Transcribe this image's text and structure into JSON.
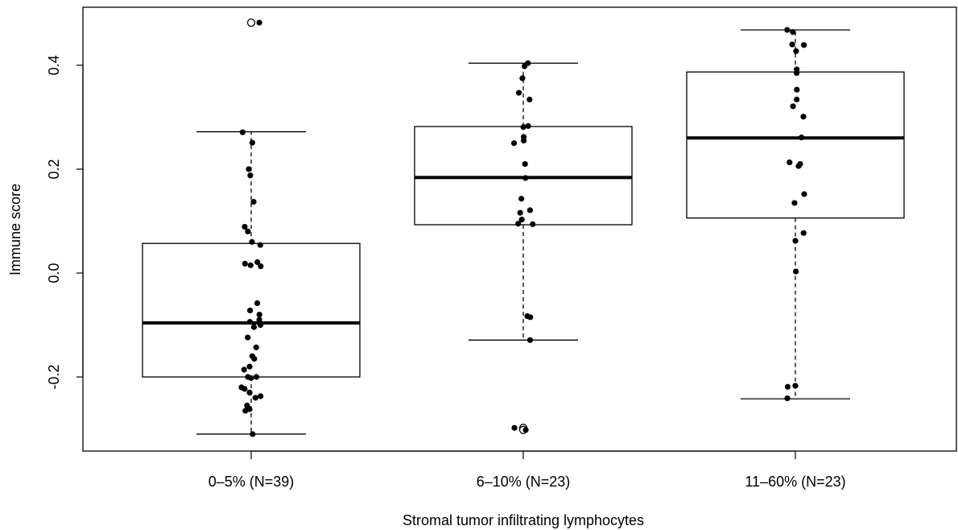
{
  "chart_data": {
    "type": "box",
    "title": "",
    "xlabel": "Stromal tumor infiltrating lymphocytes",
    "ylabel": "Immune score",
    "ylim": [
      -0.34,
      0.5
    ],
    "yticks": [
      {
        "value": -0.2,
        "label": "-0.2"
      },
      {
        "value": 0.0,
        "label": "0.0"
      },
      {
        "value": 0.2,
        "label": "0.2"
      },
      {
        "value": 0.4,
        "label": "0.4"
      }
    ],
    "grid": false,
    "legend": "none",
    "groups": [
      {
        "label": "0–5% (N=39)",
        "box": {
          "lower_whisker": -0.31,
          "q1": -0.2,
          "median": -0.096,
          "q3": 0.057,
          "upper_whisker": 0.272
        },
        "outliers": [
          0.482
        ],
        "points": [
          0.482,
          0.271,
          0.251,
          0.2,
          0.188,
          0.137,
          0.089,
          0.08,
          0.06,
          0.054,
          0.021,
          0.018,
          0.013,
          -0.058,
          -0.072,
          -0.08,
          -0.094,
          -0.104,
          -0.124,
          -0.143,
          -0.16,
          -0.165,
          -0.18,
          -0.186,
          -0.2,
          -0.202,
          -0.22,
          -0.223,
          -0.23,
          -0.237,
          -0.24,
          -0.255,
          -0.262,
          -0.265,
          -0.31,
          -0.1,
          -0.09,
          0.015,
          -0.2
        ]
      },
      {
        "label": "6–10% (N=23)",
        "box": {
          "lower_whisker": -0.129,
          "q1": 0.093,
          "median": 0.184,
          "q3": 0.282,
          "upper_whisker": 0.404
        },
        "outliers": [
          -0.298,
          -0.302
        ],
        "points": [
          0.404,
          0.398,
          0.375,
          0.347,
          0.334,
          0.283,
          0.281,
          0.262,
          0.255,
          0.25,
          0.21,
          0.183,
          0.143,
          0.121,
          0.116,
          0.103,
          0.095,
          0.094,
          -0.083,
          -0.085,
          -0.129,
          -0.298,
          -0.302
        ]
      },
      {
        "label": "11–60% (N=23)",
        "box": {
          "lower_whisker": -0.242,
          "q1": 0.106,
          "median": 0.26,
          "q3": 0.387,
          "upper_whisker": 0.468
        },
        "outliers": [],
        "points": [
          0.468,
          0.464,
          0.44,
          0.439,
          0.427,
          0.392,
          0.385,
          0.353,
          0.334,
          0.321,
          0.301,
          0.261,
          0.213,
          0.21,
          0.206,
          0.152,
          0.135,
          0.077,
          0.062,
          0.003,
          -0.217,
          -0.219,
          -0.241
        ]
      }
    ]
  }
}
